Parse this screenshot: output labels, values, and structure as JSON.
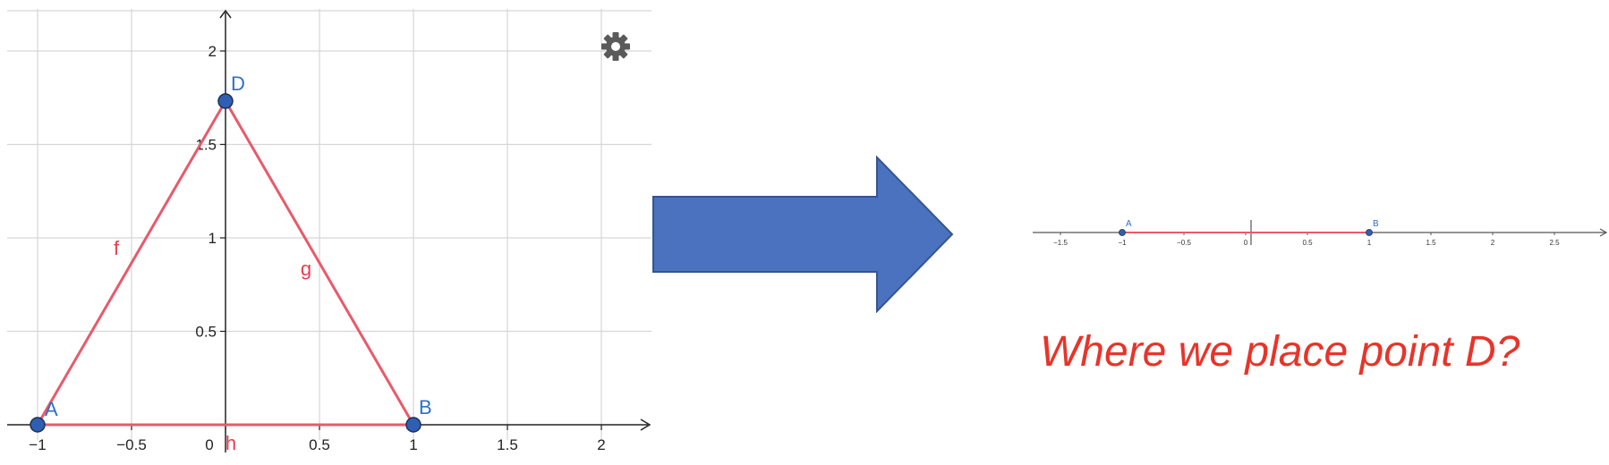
{
  "left_graph": {
    "x_ticks": [
      "−1",
      "−0.5",
      "0",
      "0.5",
      "1",
      "1.5",
      "2"
    ],
    "y_ticks": [
      "0.5",
      "1",
      "1.5",
      "2"
    ],
    "points": [
      {
        "label": "A",
        "x": -1,
        "y": 0
      },
      {
        "label": "B",
        "x": 1,
        "y": 0
      },
      {
        "label": "D",
        "x": 0,
        "y": 1.732
      }
    ],
    "segments": [
      {
        "label": "f",
        "from": "A",
        "to": "D"
      },
      {
        "label": "g",
        "from": "D",
        "to": "B"
      },
      {
        "label": "h",
        "from": "A",
        "to": "B"
      }
    ],
    "settings_icon": "gear-icon"
  },
  "arrow": {
    "color": "#4a72be",
    "direction": "right"
  },
  "right_line": {
    "x_ticks": [
      "−1.5",
      "−1",
      "−0.5",
      "0",
      "0.5",
      "1",
      "1.5",
      "2",
      "2.5"
    ],
    "points": [
      {
        "label": "A",
        "x": -1
      },
      {
        "label": "B",
        "x": 1
      }
    ]
  },
  "question": "Where we place point D?",
  "colors": {
    "segment": "#e85a6b",
    "point_fill": "#2f5fb3",
    "point_label": "#2f6fc7",
    "segment_label": "#e83c4f",
    "question": "#e8342a"
  }
}
